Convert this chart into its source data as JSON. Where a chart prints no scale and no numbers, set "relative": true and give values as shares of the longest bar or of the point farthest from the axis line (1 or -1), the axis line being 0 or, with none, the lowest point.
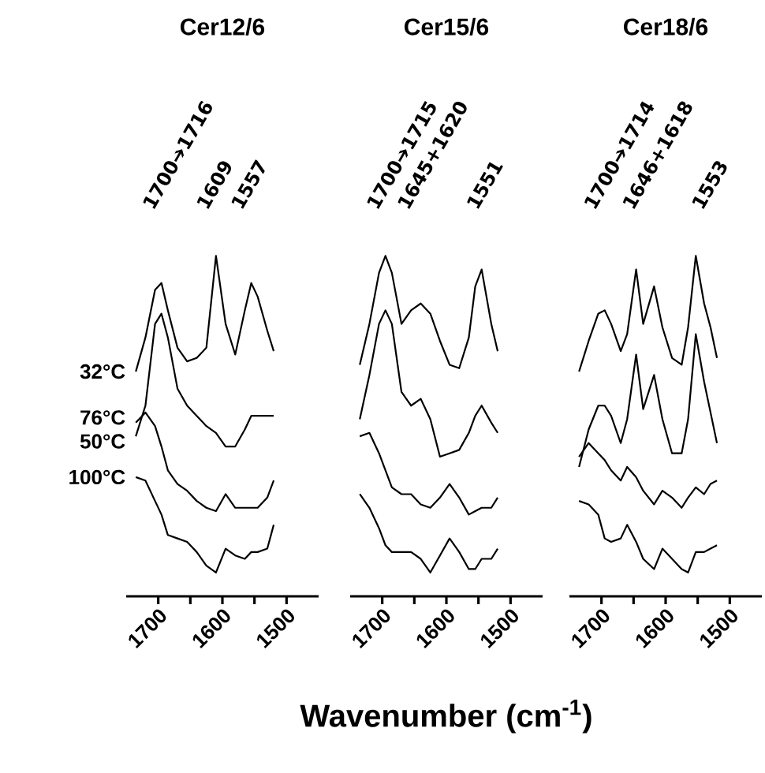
{
  "chart_data": [
    {
      "type": "line",
      "title": "Cer12/6",
      "relative": true,
      "xlim": [
        1750,
        1450
      ],
      "tick_labels": "x",
      "xticks": [
        1700,
        1600,
        1500
      ],
      "x": [
        1735,
        1720,
        1705,
        1695,
        1685,
        1670,
        1655,
        1640,
        1625,
        1610,
        1595,
        1580,
        1565,
        1555,
        1545,
        1530,
        1520
      ],
      "series": [
        {
          "name": "32°C",
          "color": "#000000",
          "values": [
            0.66,
            0.76,
            0.9,
            0.92,
            0.84,
            0.73,
            0.69,
            0.7,
            0.73,
            1.0,
            0.8,
            0.71,
            0.84,
            0.92,
            0.88,
            0.78,
            0.72
          ]
        },
        {
          "name": "50°C",
          "color": "#000000",
          "values": [
            0.47,
            0.56,
            0.8,
            0.83,
            0.76,
            0.61,
            0.56,
            0.53,
            0.5,
            0.48,
            0.44,
            0.44,
            0.49,
            0.53,
            0.53,
            0.53,
            0.53
          ]
        },
        {
          "name": "76°C",
          "color": "#000000",
          "values": [
            0.51,
            0.54,
            0.5,
            0.44,
            0.37,
            0.33,
            0.31,
            0.28,
            0.26,
            0.25,
            0.3,
            0.26,
            0.26,
            0.26,
            0.26,
            0.29,
            0.34
          ]
        },
        {
          "name": "100°C",
          "color": "#000000",
          "values": [
            0.35,
            0.34,
            0.28,
            0.24,
            0.18,
            0.17,
            0.16,
            0.13,
            0.09,
            0.07,
            0.14,
            0.12,
            0.11,
            0.13,
            0.13,
            0.14,
            0.21
          ]
        }
      ],
      "annotations": [
        "1700➔1716",
        "1609",
        "1557"
      ]
    },
    {
      "type": "line",
      "title": "Cer15/6",
      "relative": true,
      "xlim": [
        1750,
        1450
      ],
      "tick_labels": "x",
      "xlabel": "Wavenumber (cm$^{-1}$)",
      "xticks": [
        1700,
        1600,
        1500
      ],
      "x": [
        1735,
        1720,
        1705,
        1695,
        1685,
        1670,
        1655,
        1640,
        1625,
        1610,
        1595,
        1580,
        1565,
        1555,
        1545,
        1530,
        1520
      ],
      "series": [
        {
          "color": "#000000",
          "values": [
            0.68,
            0.8,
            0.95,
            1.0,
            0.95,
            0.8,
            0.84,
            0.86,
            0.83,
            0.75,
            0.68,
            0.67,
            0.76,
            0.91,
            0.96,
            0.8,
            0.72
          ]
        },
        {
          "color": "#000000",
          "values": [
            0.52,
            0.65,
            0.8,
            0.84,
            0.8,
            0.6,
            0.56,
            0.58,
            0.52,
            0.41,
            0.42,
            0.43,
            0.48,
            0.53,
            0.56,
            0.51,
            0.48
          ]
        },
        {
          "color": "#000000",
          "values": [
            0.47,
            0.48,
            0.42,
            0.37,
            0.32,
            0.3,
            0.3,
            0.27,
            0.26,
            0.29,
            0.33,
            0.29,
            0.24,
            0.25,
            0.26,
            0.26,
            0.29
          ]
        },
        {
          "color": "#000000",
          "values": [
            0.3,
            0.26,
            0.2,
            0.15,
            0.13,
            0.13,
            0.13,
            0.11,
            0.07,
            0.12,
            0.17,
            0.13,
            0.08,
            0.08,
            0.11,
            0.11,
            0.14
          ]
        }
      ],
      "annotations": [
        "1700➔1715",
        "1645+1620",
        "1551"
      ]
    },
    {
      "type": "line",
      "title": "Cer18/6",
      "relative": true,
      "xlim": [
        1750,
        1450
      ],
      "tick_labels": "x",
      "xticks": [
        1700,
        1600,
        1500
      ],
      "x": [
        1735,
        1720,
        1705,
        1695,
        1685,
        1670,
        1660,
        1646,
        1635,
        1618,
        1605,
        1590,
        1575,
        1565,
        1553,
        1540,
        1530,
        1520
      ],
      "series": [
        {
          "color": "#000000",
          "values": [
            0.66,
            0.75,
            0.83,
            0.84,
            0.8,
            0.72,
            0.77,
            0.96,
            0.8,
            0.91,
            0.79,
            0.7,
            0.68,
            0.79,
            1.0,
            0.86,
            0.79,
            0.7
          ]
        },
        {
          "color": "#000000",
          "values": [
            0.38,
            0.49,
            0.56,
            0.56,
            0.53,
            0.45,
            0.52,
            0.71,
            0.55,
            0.65,
            0.52,
            0.42,
            0.42,
            0.52,
            0.77,
            0.63,
            0.54,
            0.45
          ]
        },
        {
          "color": "#000000",
          "values": [
            0.41,
            0.45,
            0.42,
            0.4,
            0.37,
            0.34,
            0.38,
            0.35,
            0.31,
            0.27,
            0.31,
            0.29,
            0.26,
            0.29,
            0.32,
            0.3,
            0.33,
            0.34
          ]
        },
        {
          "color": "#000000",
          "values": [
            0.28,
            0.27,
            0.24,
            0.17,
            0.16,
            0.17,
            0.21,
            0.16,
            0.11,
            0.08,
            0.14,
            0.11,
            0.08,
            0.07,
            0.13,
            0.13,
            0.14,
            0.15
          ]
        }
      ],
      "annotations": [
        "1700➔1714",
        "1646+1618",
        "1553"
      ]
    }
  ]
}
